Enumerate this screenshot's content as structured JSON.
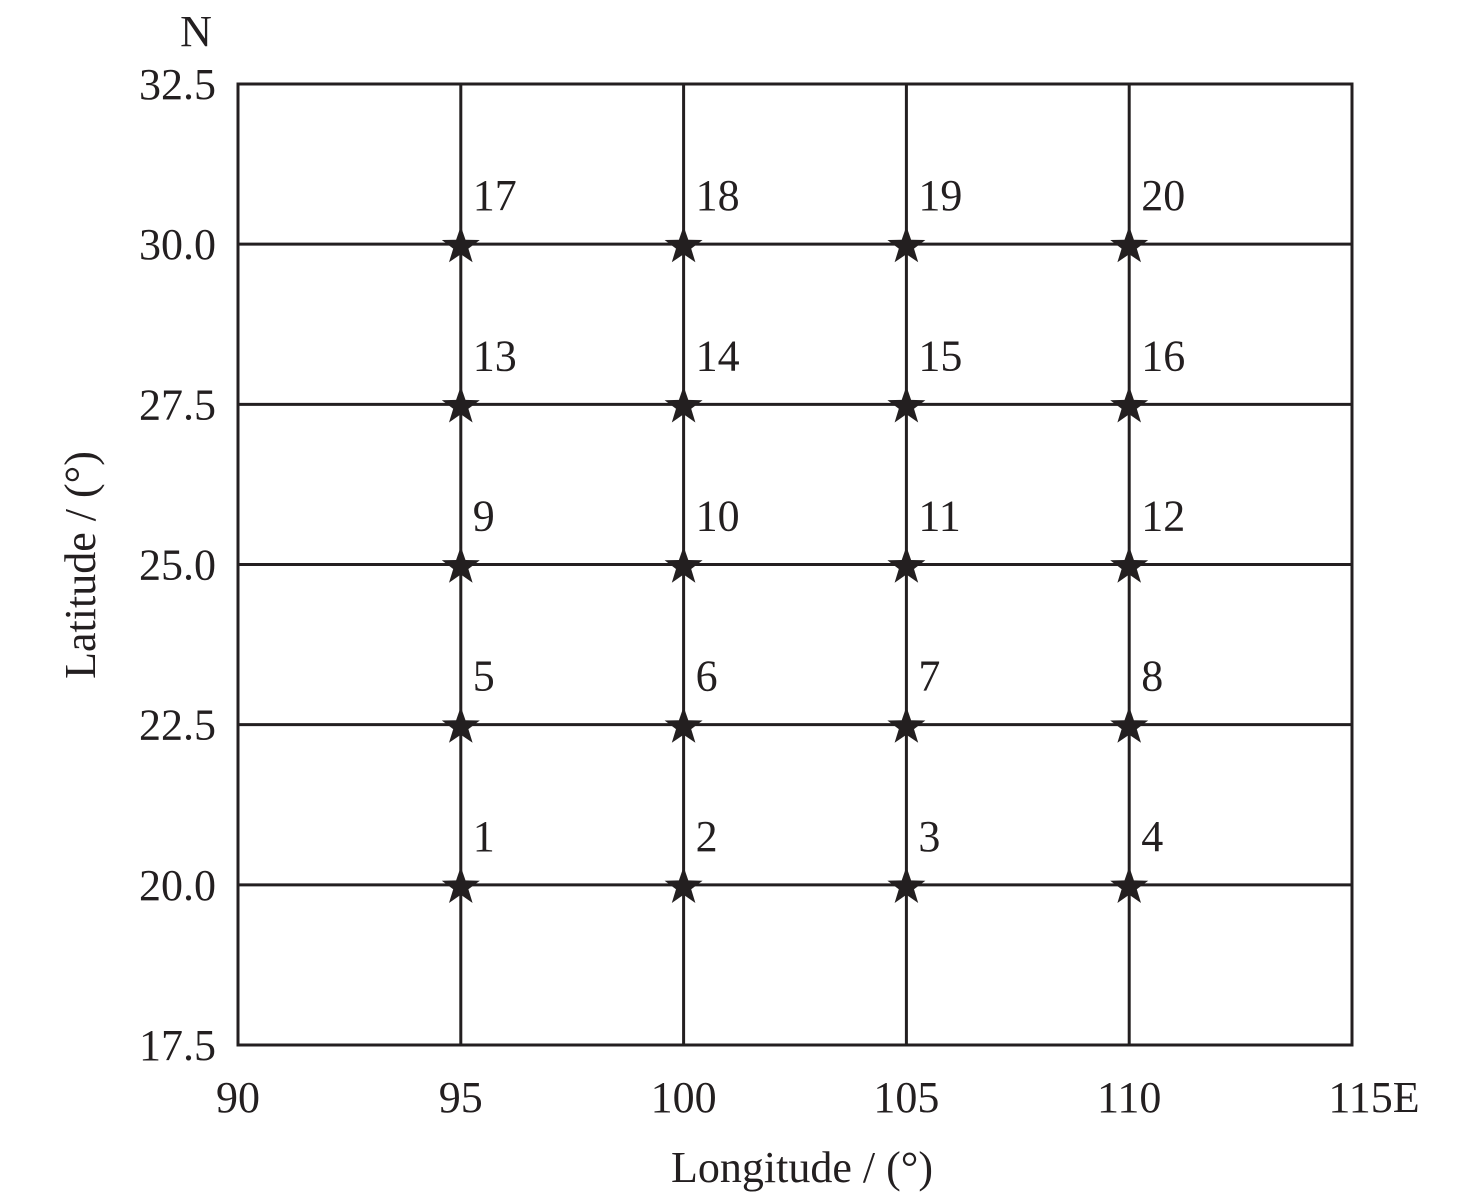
{
  "chart_data": {
    "type": "scatter",
    "title": "",
    "xlabel": "Longitude / (°)",
    "ylabel": "Latitude / (°)",
    "xlim": [
      90,
      115
    ],
    "ylim": [
      17.5,
      32.5
    ],
    "x_ticks": [
      "90",
      "95",
      "100",
      "105",
      "110",
      "115E"
    ],
    "x_tick_values": [
      90,
      95,
      100,
      105,
      110,
      115
    ],
    "y_ticks": [
      "17.5",
      "20.0",
      "22.5",
      "25.0",
      "27.5",
      "30.0",
      "32.5"
    ],
    "y_tick_values": [
      17.5,
      20,
      22.5,
      25,
      27.5,
      30,
      32.5
    ],
    "north_label": "N",
    "grid": true,
    "grid_x": [
      95,
      100,
      105,
      110
    ],
    "grid_y": [
      20,
      22.5,
      25,
      27.5,
      30
    ],
    "marker": "star",
    "color": "#231f20",
    "points": [
      {
        "label": "1",
        "x": 95,
        "y": 20
      },
      {
        "label": "2",
        "x": 100,
        "y": 20
      },
      {
        "label": "3",
        "x": 105,
        "y": 20
      },
      {
        "label": "4",
        "x": 110,
        "y": 20
      },
      {
        "label": "5",
        "x": 95,
        "y": 22.5
      },
      {
        "label": "6",
        "x": 100,
        "y": 22.5
      },
      {
        "label": "7",
        "x": 105,
        "y": 22.5
      },
      {
        "label": "8",
        "x": 110,
        "y": 22.5
      },
      {
        "label": "9",
        "x": 95,
        "y": 25
      },
      {
        "label": "10",
        "x": 100,
        "y": 25
      },
      {
        "label": "11",
        "x": 105,
        "y": 25
      },
      {
        "label": "12",
        "x": 110,
        "y": 25
      },
      {
        "label": "13",
        "x": 95,
        "y": 27.5
      },
      {
        "label": "14",
        "x": 100,
        "y": 27.5
      },
      {
        "label": "15",
        "x": 105,
        "y": 27.5
      },
      {
        "label": "16",
        "x": 110,
        "y": 27.5
      },
      {
        "label": "17",
        "x": 95,
        "y": 30
      },
      {
        "label": "18",
        "x": 100,
        "y": 30
      },
      {
        "label": "19",
        "x": 105,
        "y": 30
      },
      {
        "label": "20",
        "x": 110,
        "y": 30
      }
    ]
  }
}
